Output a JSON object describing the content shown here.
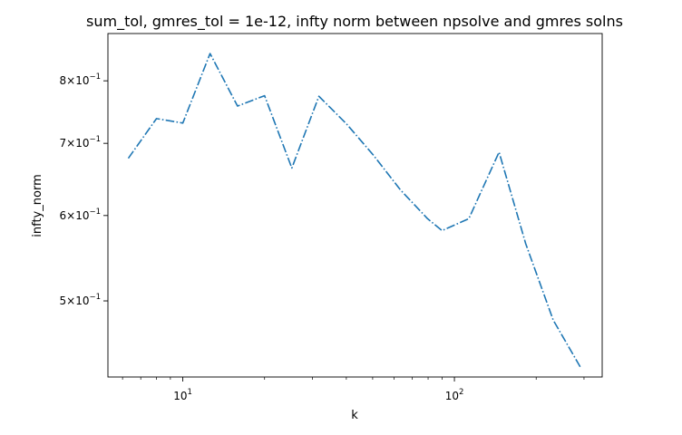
{
  "chart_data": {
    "type": "line",
    "title": "sum_tol, gmres_tol = 1e-12, infty norm between npsolve and gmres solns",
    "xlabel": "k",
    "ylabel": "infty_norm",
    "xscale": "log",
    "yscale": "log",
    "xlim": [
      5.3,
      350
    ],
    "ylim": [
      0.425,
      0.885
    ],
    "grid": false,
    "x_ticks": [
      {
        "value": 10,
        "base": "10",
        "exp": "1"
      },
      {
        "value": 100,
        "base": "10",
        "exp": "2"
      }
    ],
    "y_ticks": [
      {
        "value": 0.5,
        "mantissa": "5",
        "base": "10",
        "exp": "−1"
      },
      {
        "value": 0.6,
        "mantissa": "6",
        "base": "10",
        "exp": "−1"
      },
      {
        "value": 0.7,
        "mantissa": "7",
        "base": "10",
        "exp": "−1"
      },
      {
        "value": 0.8,
        "mantissa": "8",
        "base": "10",
        "exp": "−1"
      }
    ],
    "x_minor_ticks": [
      6,
      7,
      8,
      9,
      20,
      30,
      40,
      50,
      60,
      70,
      80,
      90,
      200,
      300
    ],
    "line_color": "#1f77b4",
    "line_style": "dashdot",
    "series": [
      {
        "x": [
          6.3,
          8.0,
          10.0,
          12.6,
          15.9,
          20.0,
          25.2,
          31.7,
          40.0,
          50.2,
          63.2,
          79.6,
          90.0,
          113.0,
          146.0,
          183.0,
          231.0,
          291.0
        ],
        "y": [
          0.678,
          0.738,
          0.731,
          0.848,
          0.758,
          0.775,
          0.664,
          0.774,
          0.73,
          0.683,
          0.634,
          0.596,
          0.581,
          0.596,
          0.687,
          0.565,
          0.48,
          0.434
        ]
      }
    ]
  }
}
